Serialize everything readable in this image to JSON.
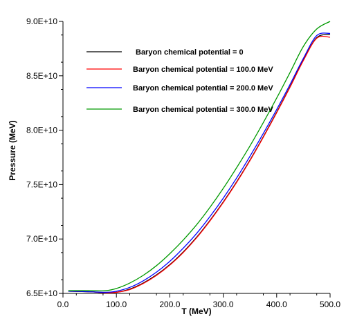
{
  "chart_data": {
    "type": "line",
    "xlabel": "T (MeV)",
    "ylabel": "Pressure (MeV)",
    "xlim": [
      0,
      500
    ],
    "ylim": [
      65000000000,
      90000000000
    ],
    "x_ticks": [
      "0.0",
      "100.0",
      "200.0",
      "300.0",
      "400.0",
      "500.0"
    ],
    "y_ticks": [
      "6.5E+10",
      "7.0E+10",
      "7.5E+10",
      "8.0E+10",
      "8.5E+10",
      "9.0E+10"
    ],
    "grid": false,
    "legend_position": "top-left",
    "series": [
      {
        "name": "Baryon chemical potential = 0",
        "color": "#000000",
        "x": [
          10,
          50,
          80,
          100,
          125,
          150,
          175,
          200,
          225,
          250,
          275,
          300,
          325,
          350,
          375,
          400,
          425,
          450,
          475,
          500
        ],
        "y": [
          65200000000,
          65150000000,
          65050000000,
          65100000000,
          65400000000,
          65950000000,
          66700000000,
          67650000000,
          68800000000,
          70150000000,
          71700000000,
          73400000000,
          75250000000,
          77250000000,
          79400000000,
          81650000000,
          84000000000,
          86450000000,
          88500000000,
          88800000000
        ]
      },
      {
        "name": "Baryon chemical potential = 100.0 MeV",
        "color": "#ff0000",
        "x": [
          10,
          50,
          80,
          100,
          125,
          150,
          175,
          200,
          225,
          250,
          275,
          300,
          325,
          350,
          375,
          400,
          425,
          450,
          475,
          500
        ],
        "y": [
          65200000000,
          65150000000,
          65050000000,
          65100000000,
          65350000000,
          65900000000,
          66650000000,
          67600000000,
          68750000000,
          70100000000,
          71650000000,
          73350000000,
          75200000000,
          77200000000,
          79350000000,
          81600000000,
          83950000000,
          86400000000,
          88450000000,
          88550000000
        ]
      },
      {
        "name": "Baryon chemical potential = 200.0 MeV",
        "color": "#0000ff",
        "x": [
          10,
          50,
          80,
          100,
          125,
          150,
          175,
          200,
          225,
          250,
          275,
          300,
          325,
          350,
          375,
          400,
          425,
          450,
          475,
          500
        ],
        "y": [
          65200000000,
          65150000000,
          65100000000,
          65200000000,
          65550000000,
          66150000000,
          66950000000,
          67950000000,
          69150000000,
          70500000000,
          72050000000,
          73750000000,
          75600000000,
          77600000000,
          79700000000,
          81900000000,
          84200000000,
          86600000000,
          88700000000,
          88900000000
        ]
      },
      {
        "name": "Baryon chemical potential = 300.0 MeV",
        "color": "#009900",
        "x": [
          10,
          50,
          80,
          100,
          125,
          150,
          175,
          200,
          225,
          250,
          275,
          300,
          325,
          350,
          375,
          400,
          425,
          450,
          475,
          500
        ],
        "y": [
          65250000000,
          65250000000,
          65250000000,
          65450000000,
          65950000000,
          66650000000,
          67550000000,
          68650000000,
          69900000000,
          71300000000,
          72900000000,
          74650000000,
          76550000000,
          78550000000,
          80700000000,
          82950000000,
          85300000000,
          87700000000,
          89300000000,
          90000000000
        ]
      }
    ]
  }
}
